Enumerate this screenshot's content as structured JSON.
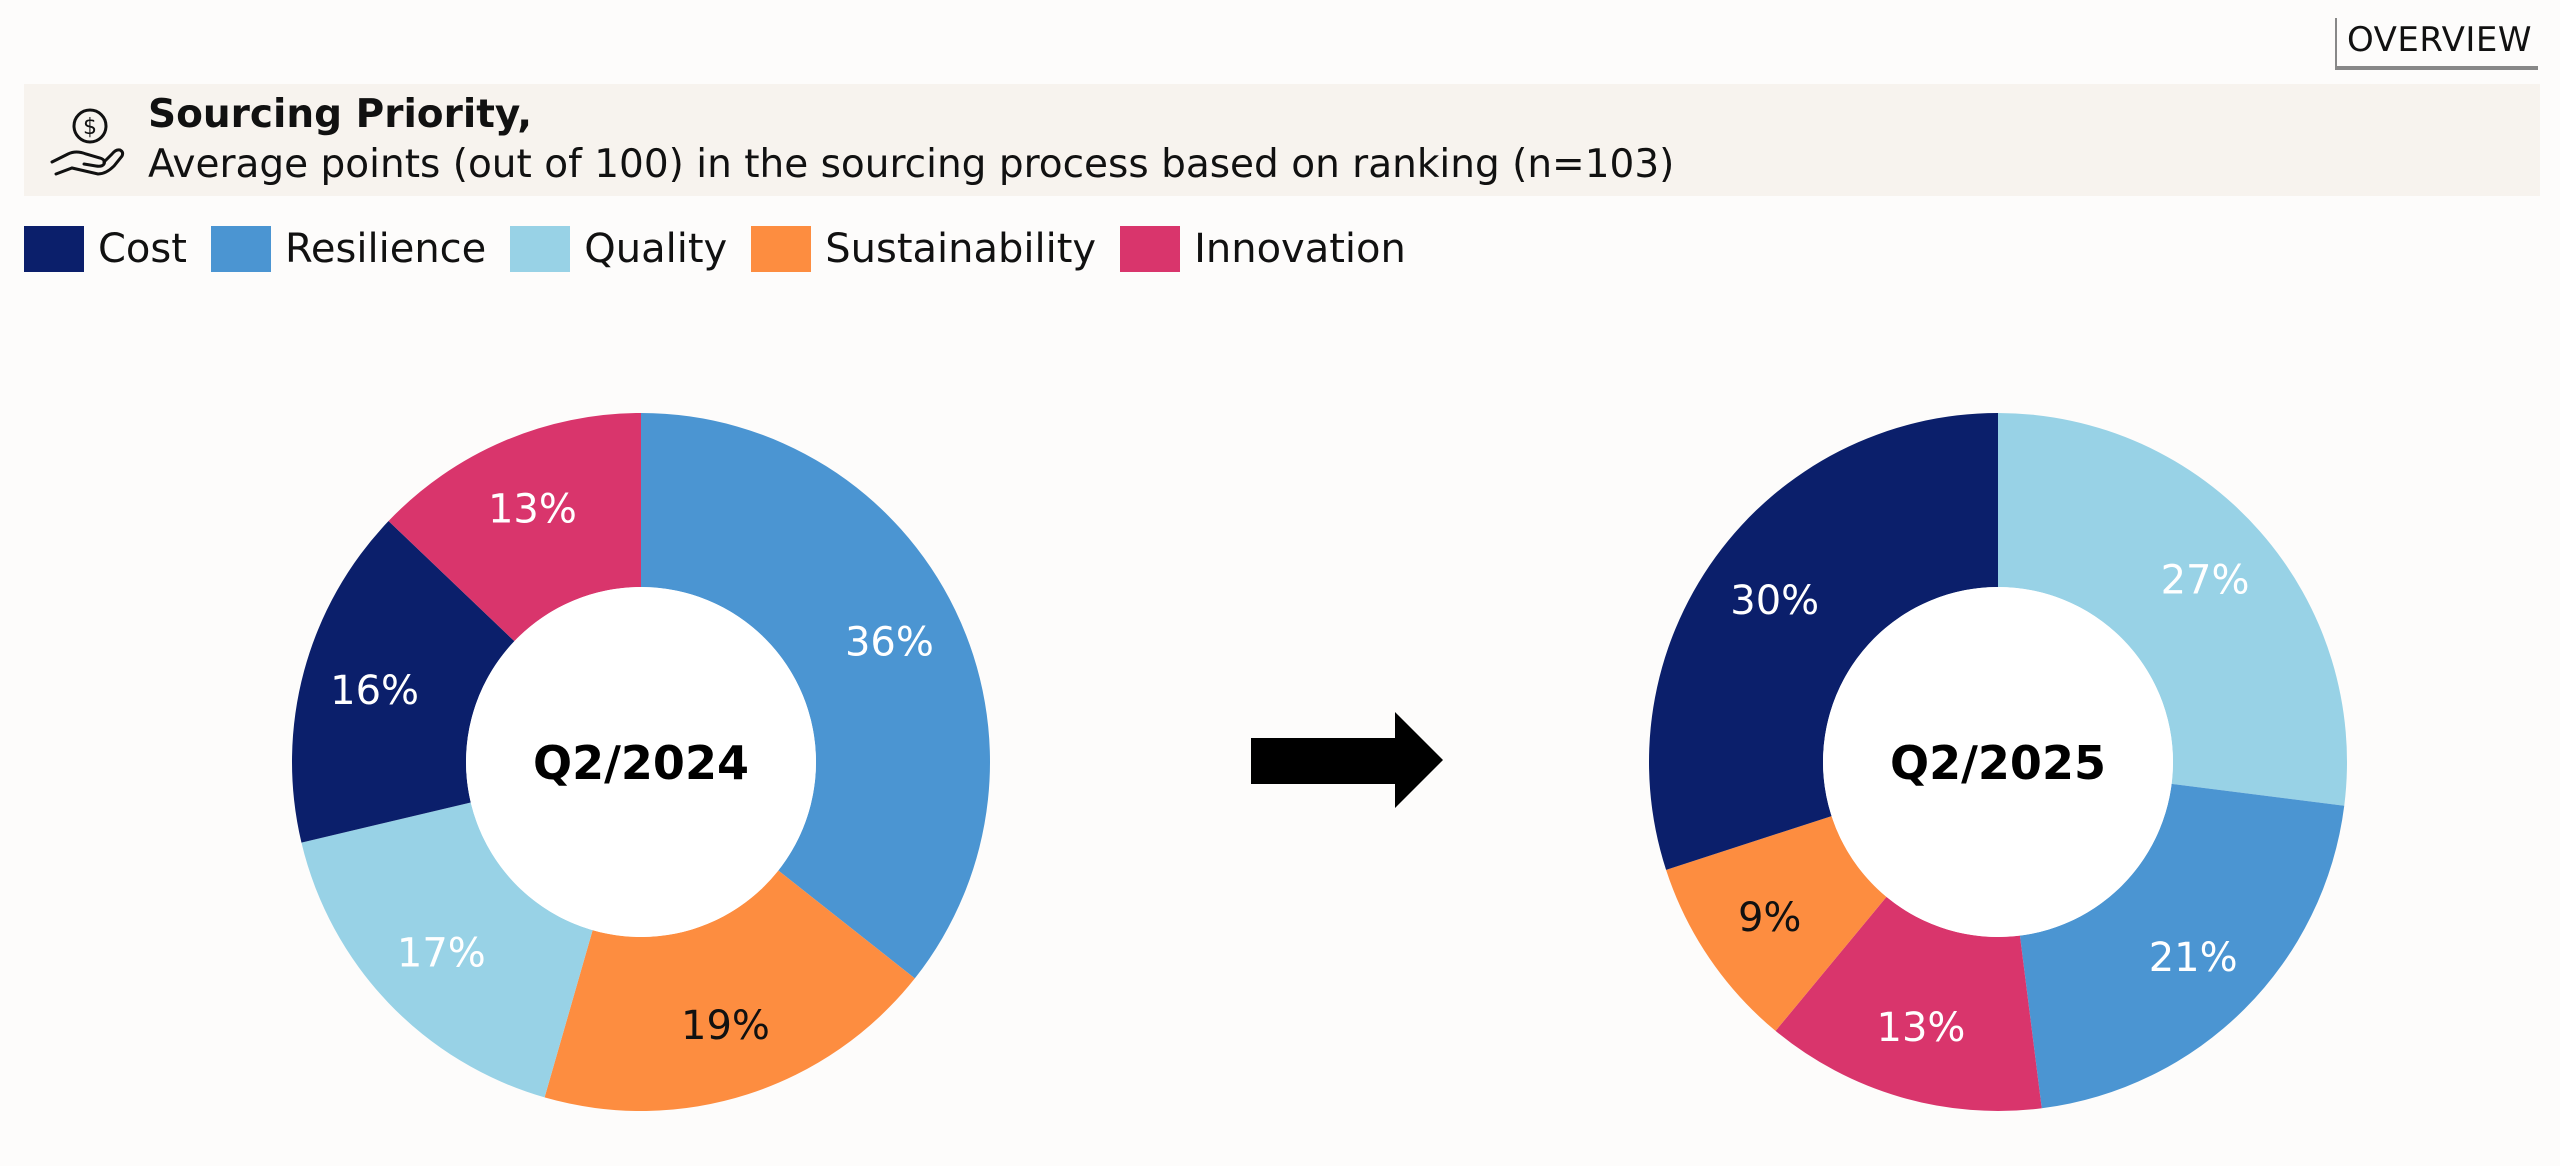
{
  "overview_label": "OVERVIEW",
  "header": {
    "icon": "hand-holding-dollar-icon",
    "title": "Sourcing Priority,",
    "subtitle": "Average points (out of 100) in the sourcing process based on ranking (n=103)"
  },
  "legend": [
    {
      "label": "Cost",
      "color": "#0b1f6b"
    },
    {
      "label": "Resilience",
      "color": "#4b95d2"
    },
    {
      "label": "Quality",
      "color": "#98d2e6"
    },
    {
      "label": "Sustainability",
      "color": "#fd8d40"
    },
    {
      "label": "Innovation",
      "color": "#d9356c"
    }
  ],
  "chart_data": [
    {
      "type": "pie",
      "title": "Q2/2024",
      "slices": [
        {
          "label": "Resilience",
          "value": 36,
          "text": "36%",
          "color": "#4b95d2",
          "label_color": "#ffffff"
        },
        {
          "label": "Sustainability",
          "value": 19,
          "text": "19%",
          "color": "#fd8d40",
          "label_color": "#111111"
        },
        {
          "label": "Quality",
          "value": 17,
          "text": "17%",
          "color": "#98d2e6",
          "label_color": "#ffffff"
        },
        {
          "label": "Cost",
          "value": 16,
          "text": "16%",
          "color": "#0b1f6b",
          "label_color": "#ffffff"
        },
        {
          "label": "Innovation",
          "value": 13,
          "text": "13%",
          "color": "#d9356c",
          "label_color": "#ffffff"
        }
      ]
    },
    {
      "type": "pie",
      "title": "Q2/2025",
      "slices": [
        {
          "label": "Quality",
          "value": 27,
          "text": "27%",
          "color": "#98d2e6",
          "label_color": "#ffffff"
        },
        {
          "label": "Resilience",
          "value": 21,
          "text": "21%",
          "color": "#4b95d2",
          "label_color": "#ffffff"
        },
        {
          "label": "Innovation",
          "value": 13,
          "text": "13%",
          "color": "#d9356c",
          "label_color": "#ffffff"
        },
        {
          "label": "Sustainability",
          "value": 9,
          "text": "9%",
          "color": "#fd8d40",
          "label_color": "#111111"
        },
        {
          "label": "Cost",
          "value": 30,
          "text": "30%",
          "color": "#0b1f6b",
          "label_color": "#ffffff"
        }
      ]
    }
  ]
}
